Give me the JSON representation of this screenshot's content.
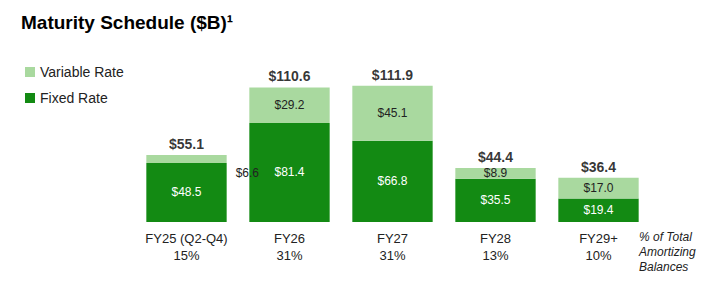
{
  "chart_data": {
    "type": "bar",
    "title": "Maturity Schedule ($B)¹",
    "categories": [
      "FY25 (Q2-Q4)",
      "FY26",
      "FY27",
      "FY28",
      "FY29+"
    ],
    "series": [
      {
        "name": "Fixed Rate",
        "color": "#138a13",
        "values": [
          48.5,
          81.4,
          66.8,
          35.5,
          19.4
        ],
        "value_labels": [
          "$48.5",
          "$81.4",
          "$66.8",
          "$35.5",
          "$19.4"
        ]
      },
      {
        "name": "Variable Rate",
        "color": "#a9d99f",
        "values": [
          6.6,
          29.2,
          45.1,
          8.9,
          17.0
        ],
        "value_labels": [
          "$6.6",
          "$29.2",
          "$45.1",
          "$8.9",
          "$17.0"
        ]
      }
    ],
    "totals": {
      "values": [
        55.1,
        110.6,
        111.9,
        44.4,
        36.4
      ],
      "value_labels": [
        "$55.1",
        "$110.6",
        "$111.9",
        "$44.4",
        "$36.4"
      ]
    },
    "share_of_total": {
      "title": "% of Total Amortizing Balances",
      "values": [
        15,
        31,
        31,
        13,
        10
      ],
      "value_labels": [
        "15%",
        "31%",
        "31%",
        "13%",
        "10%"
      ]
    },
    "stacked": true,
    "data_labels": true,
    "legend": "top-left",
    "tick_labels": "x",
    "grid": false
  }
}
